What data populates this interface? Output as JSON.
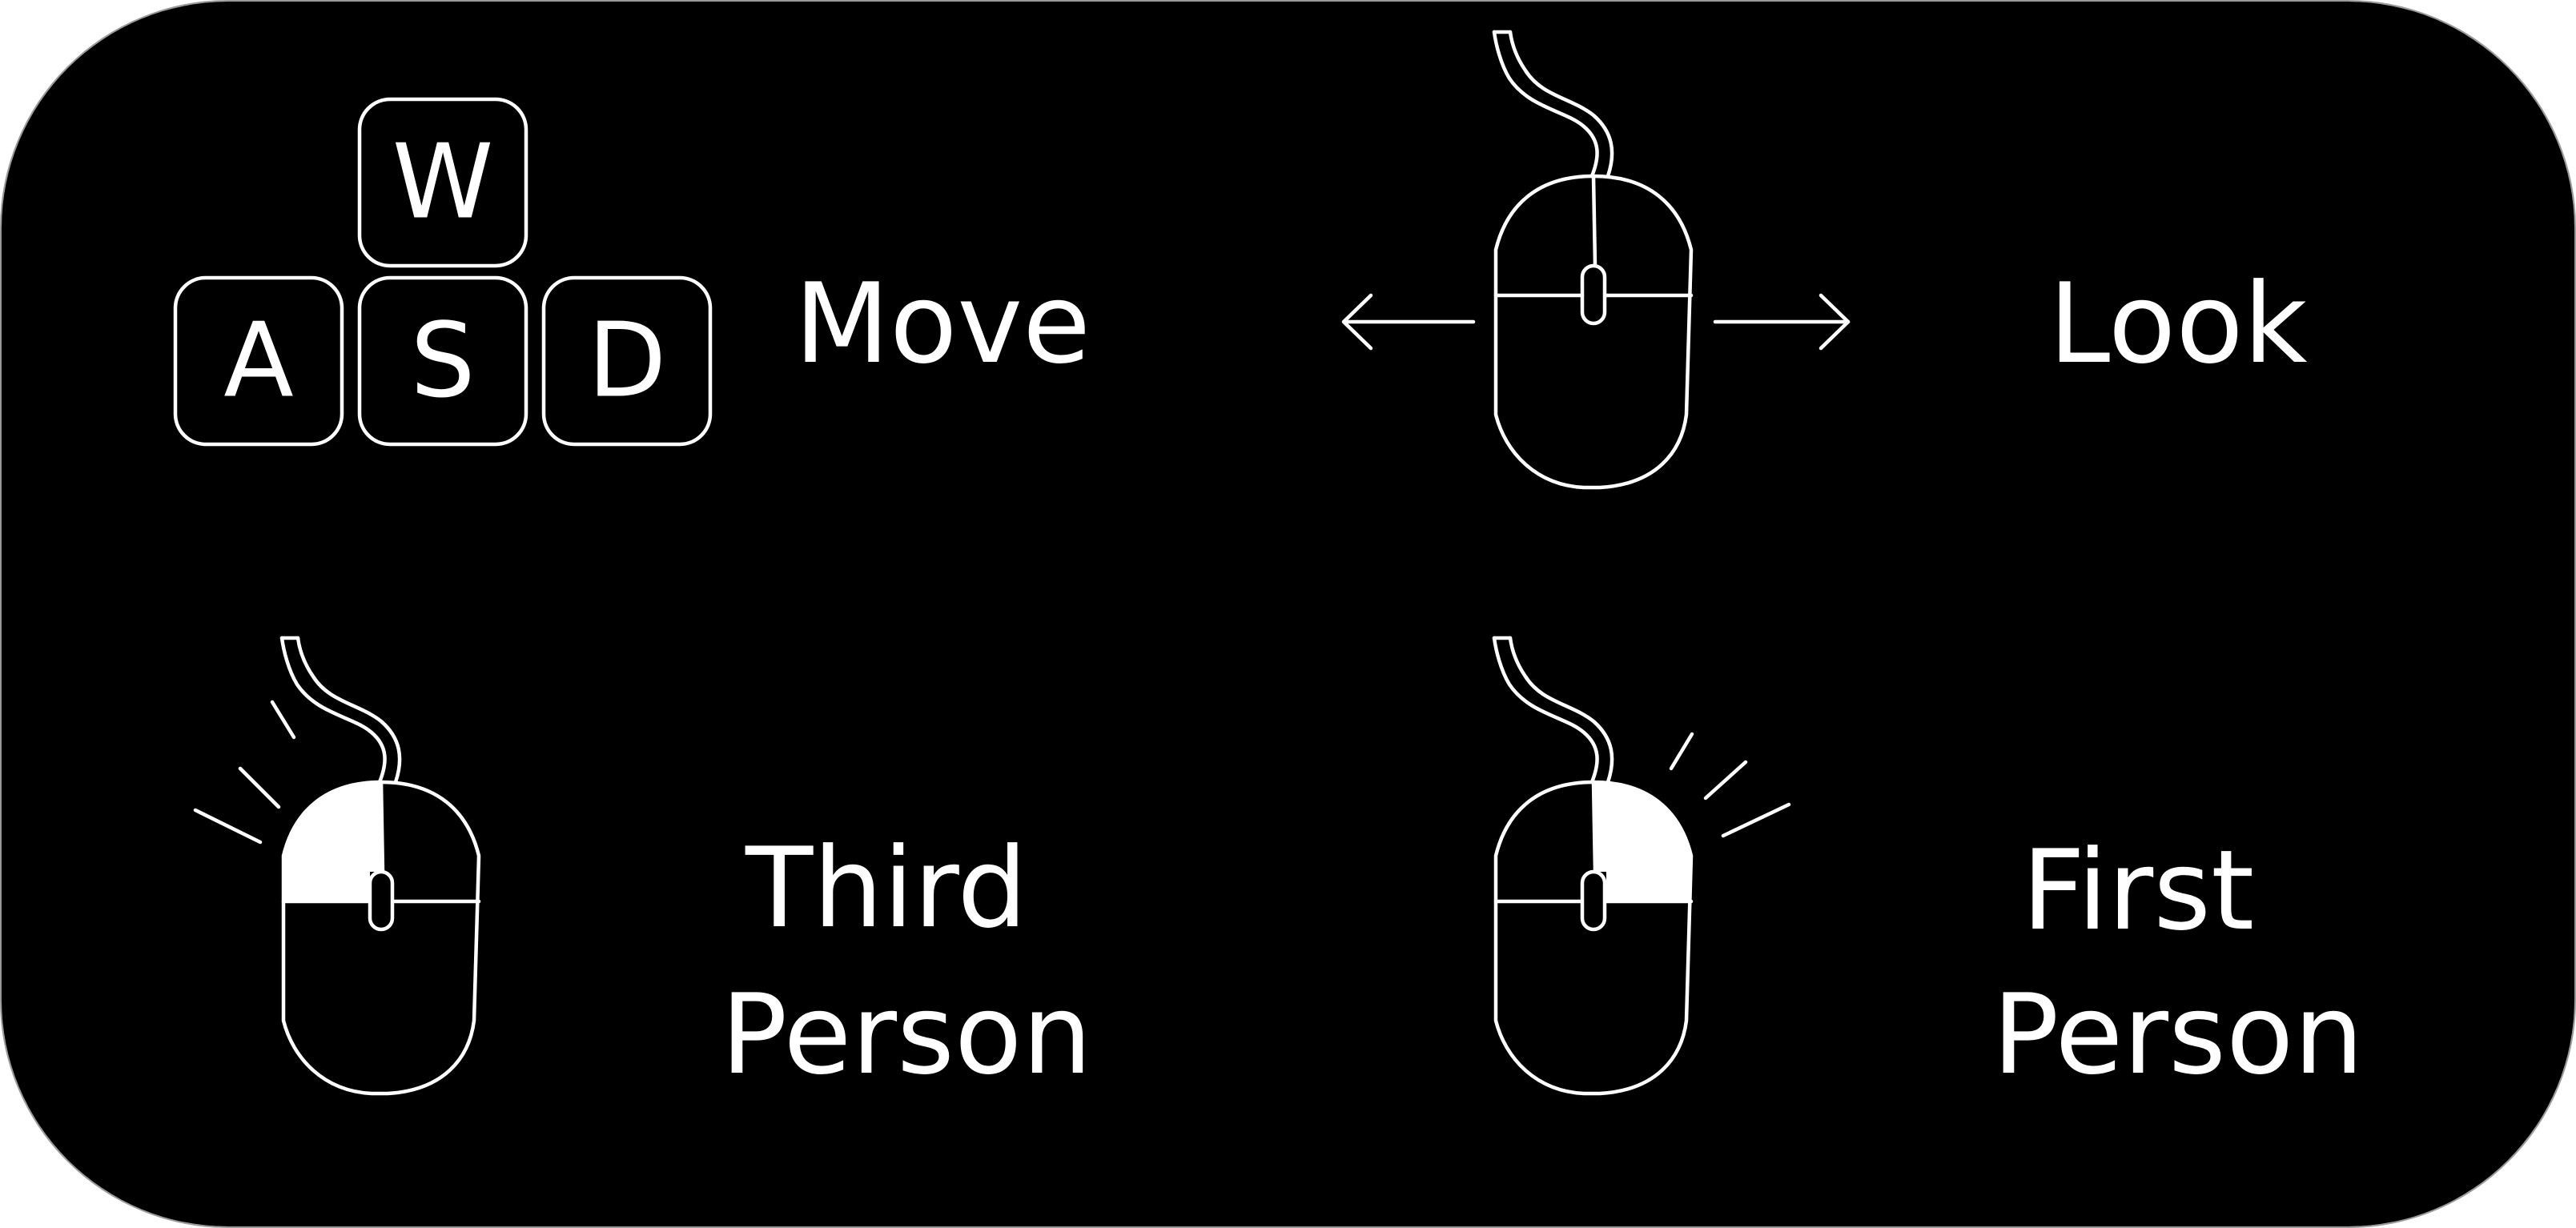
{
  "colors": {
    "background": "#000000",
    "foreground": "#ffffff",
    "frame": "#9a9a9a"
  },
  "keys": {
    "w": "W",
    "a": "A",
    "s": "S",
    "d": "D"
  },
  "labels": {
    "move": "Move",
    "look": "Look",
    "third_line1": "Third",
    "third_line2": "Person",
    "first_line1": "First",
    "first_line2": "Person"
  },
  "icons": {
    "look": "mouse-horizontal-look-icon",
    "third_person": "mouse-left-click-icon",
    "first_person": "mouse-right-click-icon"
  }
}
